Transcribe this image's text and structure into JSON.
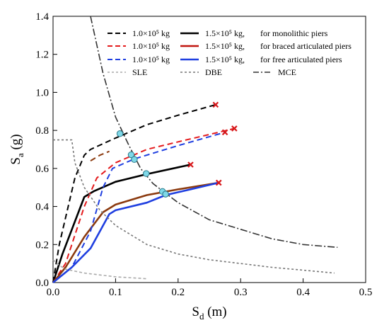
{
  "chart_data": {
    "type": "line",
    "xlabel": "S",
    "xlabel_sub": "d",
    "xlabel_unit": " (m)",
    "ylabel": "S",
    "ylabel_sub": "a",
    "ylabel_unit": " (g)",
    "xlim": [
      0,
      0.5
    ],
    "ylim": [
      0,
      1.4
    ],
    "xticks": [
      "0.0",
      "0.1",
      "0.2",
      "0.3",
      "0.4",
      "0.5"
    ],
    "yticks": [
      "0.0",
      "0.2",
      "0.4",
      "0.6",
      "0.8",
      "1.0",
      "1.2",
      "1.4"
    ],
    "legend": {
      "rows": [
        {
          "label_a": "1.0×10⁵ kg",
          "label_b": "1.5×10⁵ kg,",
          "desc": "for monolithic piers",
          "color_a": "#000000",
          "color_b": "#000000"
        },
        {
          "label_a": "1.0×10⁵ kg",
          "label_b": "1.5×10⁵ kg,",
          "desc": "for braced articulated piers",
          "color_a": "#e41a1c",
          "color_b": "#c0150f"
        },
        {
          "label_a": "1.0×10⁵ kg",
          "label_b": "1.5×10⁵ kg,",
          "desc": "for free articulated piers",
          "color_a": "#1f3fe0",
          "color_b": "#1f3fe0"
        }
      ],
      "spectra": [
        "SLE",
        "DBE",
        "MCE"
      ]
    },
    "series": [
      {
        "kind": "capacity",
        "color": "#000000",
        "dash": "8,5",
        "points": [
          [
            0,
            0
          ],
          [
            0.01,
            0.2
          ],
          [
            0.035,
            0.55
          ],
          [
            0.05,
            0.67
          ],
          [
            0.06,
            0.7
          ],
          [
            0.1,
            0.76
          ],
          [
            0.15,
            0.83
          ],
          [
            0.2,
            0.88
          ],
          [
            0.26,
            0.935
          ]
        ],
        "end": [
          0.26,
          0.935
        ],
        "perf": [
          0.107,
          0.783
        ]
      },
      {
        "kind": "capacity",
        "color": "#000000",
        "dash": "",
        "points": [
          [
            0,
            0
          ],
          [
            0.015,
            0.15
          ],
          [
            0.05,
            0.45
          ],
          [
            0.065,
            0.48
          ],
          [
            0.1,
            0.53
          ],
          [
            0.15,
            0.57
          ],
          [
            0.22,
            0.62
          ]
        ],
        "end": [
          0.22,
          0.62
        ],
        "perf": [
          0.149,
          0.573
        ]
      },
      {
        "kind": "capacity",
        "color": "#e41a1c",
        "dash": "8,5",
        "points": [
          [
            0,
            0
          ],
          [
            0.02,
            0.1
          ],
          [
            0.05,
            0.4
          ],
          [
            0.07,
            0.55
          ],
          [
            0.1,
            0.63
          ],
          [
            0.15,
            0.7
          ],
          [
            0.2,
            0.74
          ],
          [
            0.29,
            0.81
          ]
        ],
        "end": [
          0.29,
          0.81
        ],
        "perf": [
          0.125,
          0.672
        ]
      },
      {
        "kind": "capacity",
        "color": "#8b3a0f",
        "dash": "",
        "points": [
          [
            0,
            0
          ],
          [
            0.02,
            0.08
          ],
          [
            0.05,
            0.24
          ],
          [
            0.08,
            0.37
          ],
          [
            0.1,
            0.41
          ],
          [
            0.15,
            0.46
          ],
          [
            0.2,
            0.49
          ],
          [
            0.265,
            0.525
          ]
        ],
        "end": [
          0.265,
          0.525
        ],
        "perf": [
          0.175,
          0.479
        ]
      },
      {
        "kind": "capacity",
        "color": "#1f3fe0",
        "dash": "8,5",
        "points": [
          [
            0,
            0
          ],
          [
            0.03,
            0.08
          ],
          [
            0.06,
            0.27
          ],
          [
            0.08,
            0.5
          ],
          [
            0.095,
            0.6
          ],
          [
            0.13,
            0.65
          ],
          [
            0.2,
            0.72
          ],
          [
            0.275,
            0.79
          ]
        ],
        "end": [
          0.275,
          0.79
        ],
        "perf": [
          0.13,
          0.647
        ]
      },
      {
        "kind": "capacity",
        "color": "#1f3fe0",
        "dash": "",
        "points": [
          [
            0,
            0
          ],
          [
            0.03,
            0.08
          ],
          [
            0.06,
            0.18
          ],
          [
            0.09,
            0.36
          ],
          [
            0.1,
            0.38
          ],
          [
            0.15,
            0.42
          ],
          [
            0.18,
            0.46
          ],
          [
            0.22,
            0.49
          ],
          [
            0.265,
            0.525
          ]
        ],
        "end": [
          0.265,
          0.525
        ],
        "perf": [
          0.18,
          0.465
        ]
      },
      {
        "kind": "capacity",
        "color": "#8b3a0f",
        "dash": "8,5",
        "points": [
          [
            0.06,
            0.64
          ],
          [
            0.075,
            0.67
          ],
          [
            0.09,
            0.69
          ]
        ],
        "end": null,
        "perf": null
      },
      {
        "kind": "spectrum",
        "name": "SLE",
        "color": "#aaaaaa",
        "dash": "4,3",
        "points": [
          [
            0,
            0.12
          ],
          [
            0.01,
            0.09
          ],
          [
            0.02,
            0.07
          ],
          [
            0.05,
            0.05
          ],
          [
            0.1,
            0.03
          ],
          [
            0.15,
            0.02
          ]
        ]
      },
      {
        "kind": "spectrum",
        "name": "DBE",
        "color": "#777777",
        "dash": "3,3",
        "points": [
          [
            0,
            0.75
          ],
          [
            0.03,
            0.75
          ],
          [
            0.035,
            0.63
          ],
          [
            0.05,
            0.5
          ],
          [
            0.075,
            0.38
          ],
          [
            0.1,
            0.3
          ],
          [
            0.15,
            0.2
          ],
          [
            0.2,
            0.15
          ],
          [
            0.25,
            0.12
          ],
          [
            0.3,
            0.1
          ],
          [
            0.35,
            0.08
          ],
          [
            0.4,
            0.065
          ],
          [
            0.45,
            0.05
          ]
        ]
      },
      {
        "kind": "spectrum",
        "name": "MCE",
        "color": "#333333",
        "dash": "10,3,2,3",
        "points": [
          [
            0.06,
            1.4
          ],
          [
            0.08,
            1.1
          ],
          [
            0.1,
            0.87
          ],
          [
            0.12,
            0.73
          ],
          [
            0.14,
            0.6
          ],
          [
            0.16,
            0.52
          ],
          [
            0.18,
            0.47
          ],
          [
            0.2,
            0.42
          ],
          [
            0.25,
            0.33
          ],
          [
            0.3,
            0.28
          ],
          [
            0.35,
            0.23
          ],
          [
            0.4,
            0.2
          ],
          [
            0.455,
            0.185
          ]
        ]
      }
    ]
  }
}
